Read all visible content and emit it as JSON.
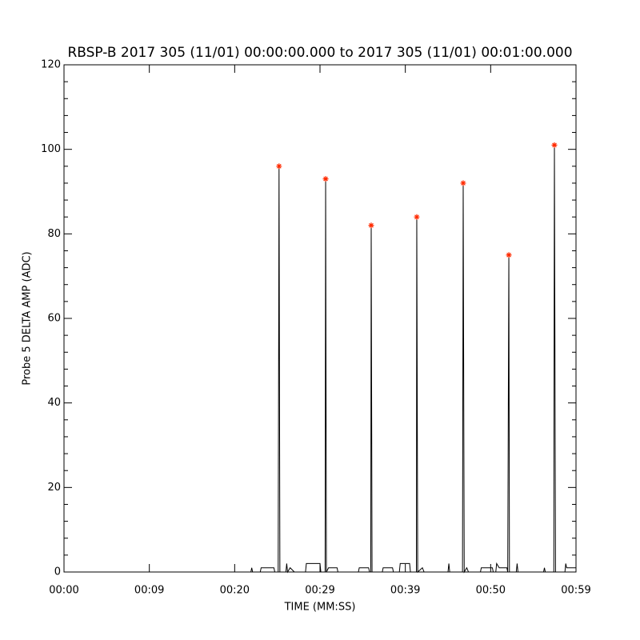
{
  "chart_data": {
    "type": "line",
    "title": "RBSP-B 2017 305 (11/01) 00:00:00.000 to 2017 305 (11/01) 00:01:00.000",
    "x_label": "TIME (MM:SS)",
    "y_label": "Probe 5 DELTA AMP (ADC)",
    "xlim": [
      0,
      60
    ],
    "xticks": [
      {
        "value": 0,
        "label": "00:00"
      },
      {
        "value": 10,
        "label": "00:09"
      },
      {
        "value": 20,
        "label": "00:20"
      },
      {
        "value": 30,
        "label": "00:29"
      },
      {
        "value": 40,
        "label": "00:39"
      },
      {
        "value": 50,
        "label": "00:50"
      },
      {
        "value": 60,
        "label": "00:59"
      }
    ],
    "ylim": [
      0,
      120
    ],
    "yticks": [
      0,
      20,
      40,
      60,
      80,
      100,
      120
    ],
    "yminor": 4,
    "series": [
      {
        "style": "line",
        "color": "#000000",
        "x": [
          0,
          21.9,
          22.0,
          22.1,
          23.0,
          23.1,
          24.6,
          24.7,
          25.1,
          25.2,
          25.3,
          26.0,
          26.1,
          26.2,
          26.5,
          27.0,
          28.3,
          28.4,
          30.0,
          30.1,
          30.6,
          30.66,
          30.75,
          31.0,
          32.0,
          32.1,
          34.5,
          34.6,
          35.7,
          35.8,
          35.95,
          36.0,
          36.1,
          37.3,
          37.4,
          38.5,
          38.6,
          39.3,
          39.4,
          40.5,
          40.6,
          41.3,
          41.34,
          41.45,
          42.0,
          42.2,
          45.0,
          45.1,
          45.2,
          46.7,
          46.78,
          46.9,
          47.2,
          47.4,
          48.8,
          48.9,
          50.2,
          50.3,
          50.6,
          50.7,
          51.0,
          51.9,
          52.0,
          52.13,
          52.2,
          53.0,
          53.1,
          53.2,
          56.2,
          56.3,
          56.4,
          57.4,
          57.47,
          57.6,
          58.7,
          58.8,
          58.9,
          60
        ],
        "values": [
          0,
          0,
          1,
          0,
          0,
          1,
          1,
          0,
          0,
          96,
          0,
          0,
          2,
          0,
          1,
          0,
          0,
          2,
          2,
          0,
          0,
          93,
          0,
          1,
          1,
          0,
          0,
          1,
          1,
          0,
          0,
          82,
          0,
          0,
          1,
          1,
          0,
          0,
          2,
          2,
          0,
          0,
          84,
          0,
          1,
          0,
          0,
          2,
          0,
          0,
          92,
          0,
          1,
          0,
          0,
          1,
          1,
          0,
          0,
          2,
          1,
          1,
          0,
          75,
          0,
          0,
          2,
          0,
          0,
          1,
          0,
          0,
          101,
          0,
          0,
          2,
          1,
          1
        ]
      },
      {
        "style": "asterisk",
        "color": "#ff2a00",
        "x": [
          25.2,
          30.66,
          36.0,
          41.34,
          46.78,
          52.13,
          57.47
        ],
        "values": [
          96,
          93,
          82,
          84,
          92,
          75,
          101
        ]
      }
    ]
  }
}
